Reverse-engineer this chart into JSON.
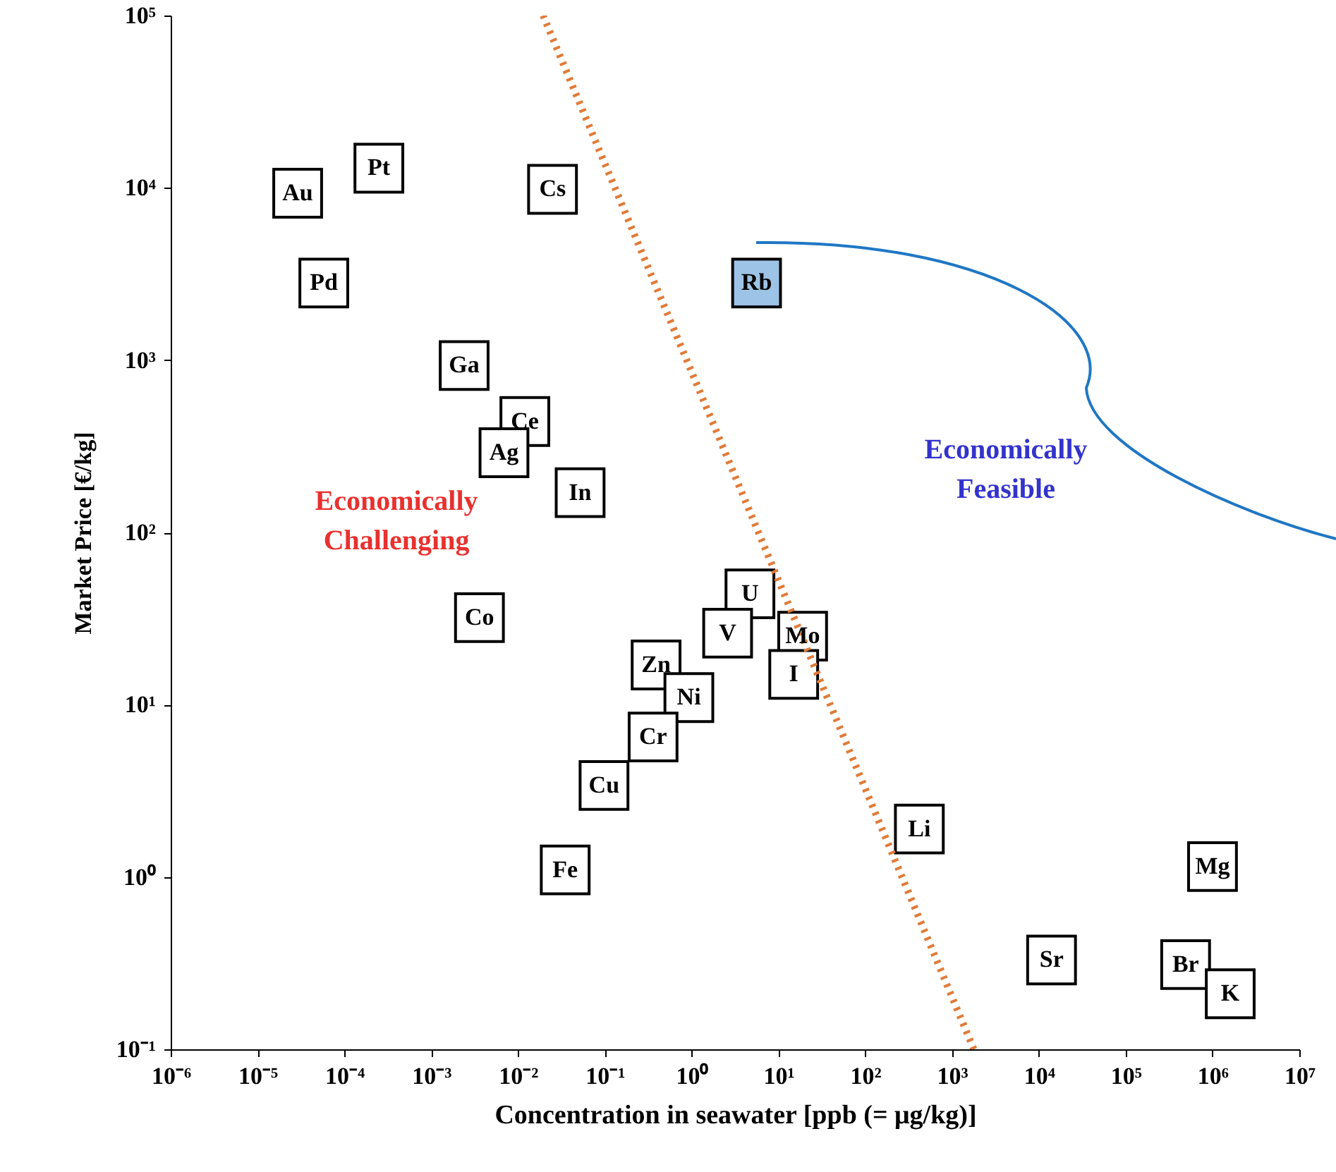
{
  "chart_data": {
    "type": "scatter",
    "xlabel": "Concentration in seawater [ppb (= μg/kg)]",
    "ylabel": "Market Price [€/kg]",
    "log": "xy",
    "grid": false,
    "xlim": [
      1e-06,
      10000000.0
    ],
    "xticks": [
      {
        "value": 1e-06,
        "label": "10⁻⁶"
      },
      {
        "value": 1e-05,
        "label": "10⁻⁵"
      },
      {
        "value": 0.0001,
        "label": "10⁻⁴"
      },
      {
        "value": 0.001,
        "label": "10⁻³"
      },
      {
        "value": 0.01,
        "label": "10⁻²"
      },
      {
        "value": 0.1,
        "label": "10⁻¹"
      },
      {
        "value": 1,
        "label": "10⁰"
      },
      {
        "value": 10,
        "label": "10¹"
      },
      {
        "value": 100,
        "label": "10²"
      },
      {
        "value": 1000,
        "label": "10³"
      },
      {
        "value": 10000,
        "label": "10⁴"
      },
      {
        "value": 100000,
        "label": "10⁵"
      },
      {
        "value": 1000000,
        "label": "10⁶"
      },
      {
        "value": 10000000,
        "label": "10⁷"
      }
    ],
    "ylim": [
      0.1,
      100000
    ],
    "yticks": [
      {
        "value": 0.1,
        "label": "10⁻¹"
      },
      {
        "value": 1,
        "label": "10⁰"
      },
      {
        "value": 10,
        "label": "10¹"
      },
      {
        "value": 100,
        "label": "10²"
      },
      {
        "value": 1000,
        "label": "10³"
      },
      {
        "value": 10000,
        "label": "10⁴"
      },
      {
        "value": 100000,
        "label": "10⁵"
      }
    ],
    "series": [
      {
        "marker": "square",
        "x": [
          2.9e-05,
          0.00025,
          5.8e-05,
          0.025,
          5.6,
          0.0024,
          0.012,
          0.0069,
          0.052,
          0.0036,
          4.7,
          2.6,
          19,
          15,
          0.39,
          0.93,
          0.36,
          0.098,
          0.035,
          420,
          1000000,
          14000,
          490000,
          1600000
        ],
        "values": [
          9300,
          13000,
          2800,
          9800,
          2800,
          930,
          440,
          290,
          170,
          32,
          44,
          26,
          25,
          15,
          17,
          11,
          6.5,
          3.4,
          1.1,
          1.9,
          1.15,
          0.33,
          0.31,
          0.21
        ],
        "colors": [
          "#ffffff",
          "#ffffff",
          "#ffffff",
          "#ffffff",
          "#9dc3e6",
          "#ffffff",
          "#ffffff",
          "#ffffff",
          "#ffffff",
          "#ffffff",
          "#ffffff",
          "#ffffff",
          "#ffffff",
          "#ffffff",
          "#ffffff",
          "#ffffff",
          "#ffffff",
          "#ffffff",
          "#ffffff",
          "#ffffff",
          "#ffffff",
          "#ffffff",
          "#ffffff",
          "#ffffff"
        ]
      },
      {
        "type": "line",
        "x": [
          0.0195,
          1780
        ],
        "values": [
          100000,
          0.1
        ],
        "color": "#e07b39",
        "line_style": "dotted"
      }
    ],
    "annotations": [
      {
        "text": "Au",
        "x": 2.9e-05,
        "y": 9300
      },
      {
        "text": "Pt",
        "x": 0.00025,
        "y": 13000
      },
      {
        "text": "Pd",
        "x": 5.8e-05,
        "y": 2800
      },
      {
        "text": "Cs",
        "x": 0.025,
        "y": 9800
      },
      {
        "text": "Rb",
        "x": 5.6,
        "y": 2800
      },
      {
        "text": "Ga",
        "x": 0.0024,
        "y": 930
      },
      {
        "text": "Ce",
        "x": 0.012,
        "y": 440
      },
      {
        "text": "Ag",
        "x": 0.0069,
        "y": 290
      },
      {
        "text": "In",
        "x": 0.052,
        "y": 170
      },
      {
        "text": "Co",
        "x": 0.0036,
        "y": 32
      },
      {
        "text": "U",
        "x": 4.7,
        "y": 44
      },
      {
        "text": "V",
        "x": 2.6,
        "y": 26
      },
      {
        "text": "Mo",
        "x": 19,
        "y": 25
      },
      {
        "text": "I",
        "x": 15,
        "y": 15
      },
      {
        "text": "Zn",
        "x": 0.39,
        "y": 17
      },
      {
        "text": "Ni",
        "x": 0.93,
        "y": 11
      },
      {
        "text": "Cr",
        "x": 0.36,
        "y": 6.5
      },
      {
        "text": "Cu",
        "x": 0.098,
        "y": 3.4
      },
      {
        "text": "Fe",
        "x": 0.035,
        "y": 1.1
      },
      {
        "text": "Li",
        "x": 420,
        "y": 1.9
      },
      {
        "text": "Mg",
        "x": 1000000,
        "y": 1.15
      },
      {
        "text": "Sr",
        "x": 14000,
        "y": 0.33
      },
      {
        "text": "Br",
        "x": 490000,
        "y": 0.31
      },
      {
        "text": "K",
        "x": 1600000,
        "y": 0.21
      },
      "Economically\nChallenging",
      "Economically\nFeasible"
    ]
  }
}
